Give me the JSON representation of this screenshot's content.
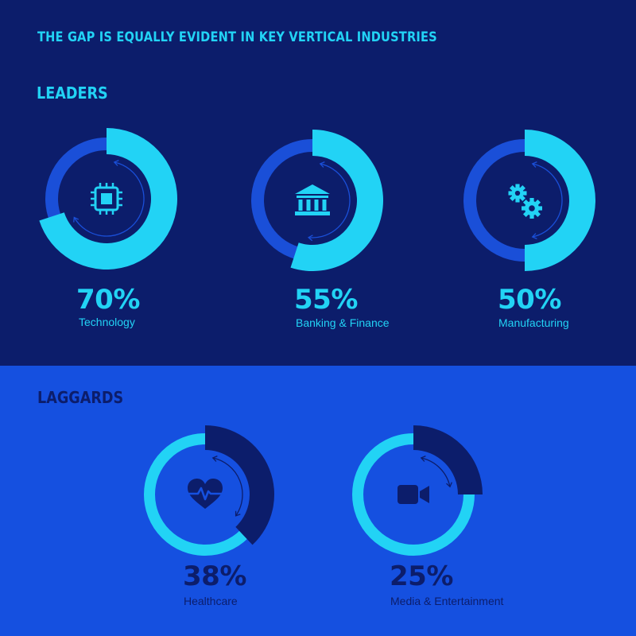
{
  "title": "THE GAP IS EQUALLY EVIDENT IN KEY VERTICAL INDUSTRIES",
  "colors": {
    "top_bg": "#0c1d6b",
    "bottom_bg": "#1550e0",
    "cyan": "#22d3f5",
    "mid_blue": "#1a4fd8",
    "navy": "#0c1d6b"
  },
  "chart_data": [
    {
      "type": "pie",
      "group": "LEADERS",
      "items": [
        {
          "label": "Technology",
          "value": 70,
          "value_label": "70%",
          "icon": "chip-icon"
        },
        {
          "label": "Banking & Finance",
          "value": 55,
          "value_label": "55%",
          "icon": "bank-icon"
        },
        {
          "label": "Manufacturing",
          "value": 50,
          "value_label": "50%",
          "icon": "gears-icon"
        }
      ]
    },
    {
      "type": "pie",
      "group": "LAGGARDS",
      "items": [
        {
          "label": "Healthcare",
          "value": 38,
          "value_label": "38%",
          "icon": "heart-pulse-icon"
        },
        {
          "label": "Media & Entertainment",
          "value": 25,
          "value_label": "25%",
          "icon": "video-camera-icon"
        }
      ]
    }
  ]
}
